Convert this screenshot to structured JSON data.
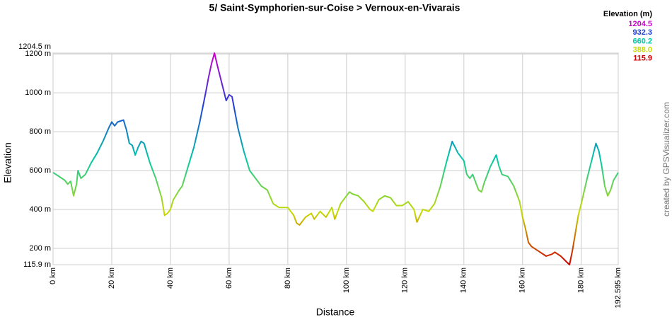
{
  "chart_data": {
    "type": "line",
    "title": "5/ Saint-Symphorien-sur-Coise > Vernoux-en-Vivarais",
    "x_label": "Distance",
    "y_label": "Elevation",
    "watermark": "created by GPSVisualizer.com",
    "grid": true,
    "legend": {
      "title": "Elevation (m)",
      "items": [
        {
          "value": 1204.5,
          "label": "1204.5",
          "color": "#cc00cc"
        },
        {
          "value": 932.3,
          "label": "932.3",
          "color": "#1f3fd8"
        },
        {
          "value": 660.2,
          "label": "660.2",
          "color": "#00c8a8"
        },
        {
          "value": 388.0,
          "label": "388.0",
          "color": "#c8dc00"
        },
        {
          "value": 115.9,
          "label": "115.9",
          "color": "#cc0000"
        }
      ]
    },
    "xlim": [
      0,
      192.595
    ],
    "xticks": [
      {
        "value": 0,
        "label": "0 km"
      },
      {
        "value": 20,
        "label": "20 km"
      },
      {
        "value": 40,
        "label": "40 km"
      },
      {
        "value": 60,
        "label": "60 km"
      },
      {
        "value": 80,
        "label": "80 km"
      },
      {
        "value": 100,
        "label": "100 km"
      },
      {
        "value": 120,
        "label": "120 km"
      },
      {
        "value": 140,
        "label": "140 km"
      },
      {
        "value": 160,
        "label": "160 km"
      },
      {
        "value": 180,
        "label": "180 km"
      },
      {
        "value": 192.595,
        "label": "192.595 km"
      }
    ],
    "ylim": [
      115.9,
      1204.5
    ],
    "yticks": [
      {
        "value": 115.9,
        "label": "115.9 m"
      },
      {
        "value": 200,
        "label": "200 m"
      },
      {
        "value": 400,
        "label": "400 m"
      },
      {
        "value": 600,
        "label": "600 m"
      },
      {
        "value": 800,
        "label": "800 m"
      },
      {
        "value": 1000,
        "label": "1000 m"
      },
      {
        "value": 1200,
        "label": "1200 m"
      },
      {
        "value": 1204.5,
        "label": "1204.5 m"
      }
    ],
    "x": [
      0,
      2,
      4,
      5,
      6,
      7,
      8,
      8.5,
      9.5,
      11,
      13,
      15,
      17,
      19,
      20,
      21,
      22,
      24,
      25,
      26,
      27,
      28,
      29,
      30,
      31,
      33,
      35,
      37,
      38,
      39,
      40,
      41,
      43,
      44,
      46,
      48,
      50,
      52,
      53,
      54,
      55,
      56,
      57,
      58,
      59,
      60,
      61,
      62,
      63,
      65,
      67,
      69,
      71,
      73,
      75,
      77,
      80,
      82,
      83,
      84,
      86,
      88,
      89,
      91,
      93,
      95,
      96,
      98,
      100,
      101,
      102,
      104,
      106,
      108,
      109,
      111,
      113,
      115,
      117,
      119,
      121,
      123,
      124,
      126,
      128,
      130,
      132,
      134,
      136,
      138,
      139,
      140,
      141,
      142,
      143,
      144,
      145,
      146,
      147,
      149,
      151,
      152,
      153,
      155,
      157,
      159,
      160,
      161,
      162,
      163,
      165,
      167,
      168,
      170,
      171,
      173,
      175,
      176,
      177,
      178,
      179,
      180,
      182,
      184,
      185,
      186,
      187,
      188,
      189,
      190,
      191,
      192.595
    ],
    "values": [
      590,
      570,
      550,
      530,
      545,
      470,
      530,
      600,
      560,
      580,
      640,
      690,
      750,
      820,
      850,
      830,
      850,
      860,
      810,
      740,
      730,
      680,
      720,
      750,
      740,
      640,
      560,
      460,
      370,
      380,
      400,
      450,
      500,
      520,
      620,
      720,
      850,
      1000,
      1080,
      1150,
      1204.5,
      1140,
      1080,
      1020,
      960,
      990,
      980,
      900,
      820,
      700,
      600,
      560,
      520,
      500,
      430,
      410,
      410,
      370,
      330,
      320,
      360,
      380,
      350,
      390,
      360,
      410,
      350,
      430,
      470,
      490,
      480,
      470,
      440,
      400,
      390,
      450,
      470,
      460,
      420,
      420,
      440,
      400,
      335,
      400,
      390,
      430,
      520,
      640,
      750,
      690,
      670,
      650,
      580,
      560,
      580,
      540,
      500,
      490,
      540,
      620,
      680,
      620,
      580,
      570,
      520,
      440,
      360,
      300,
      230,
      210,
      190,
      170,
      160,
      170,
      180,
      160,
      130,
      115.9,
      190,
      280,
      370,
      430,
      560,
      680,
      740,
      700,
      620,
      520,
      470,
      500,
      550,
      590
    ]
  }
}
